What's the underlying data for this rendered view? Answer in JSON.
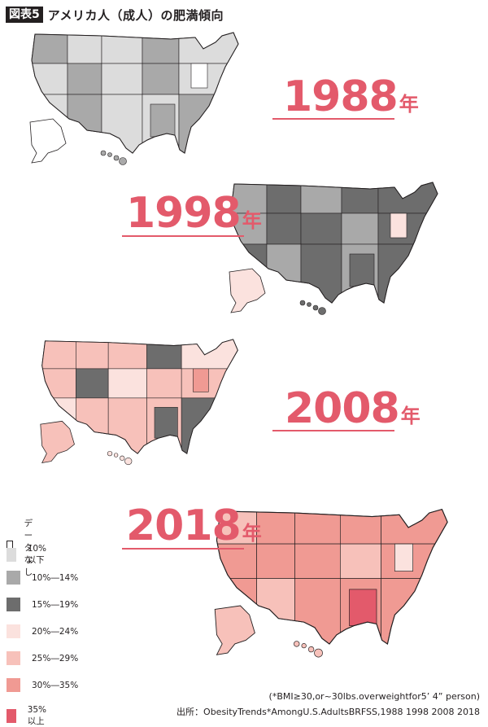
{
  "header": {
    "badge": "図表5",
    "title": "アメリカ人（成人）の肥満傾向"
  },
  "colors": {
    "no_data": "#ffffff",
    "under10": "#dcdcdc",
    "r10_14": "#a9a9a9",
    "r15_19": "#6d6d6d",
    "r20_24": "#fbe2de",
    "r25_29": "#f7c1ba",
    "r30_35": "#f09a93",
    "over35": "#e35a6b",
    "accent": "#e35a6b",
    "border": "#231f20"
  },
  "maps": [
    {
      "year": "1988",
      "nen": "年",
      "main": "r10_14",
      "alt": "under10",
      "dark": "r10_14",
      "pale": "no_data",
      "alaska": "no_data",
      "hawaii": "r10_14"
    },
    {
      "year": "1998",
      "nen": "年",
      "main": "r15_19",
      "alt": "r10_14",
      "dark": "r15_19",
      "pale": "r20_24",
      "alaska": "r20_24",
      "hawaii": "r15_19"
    },
    {
      "year": "2008",
      "nen": "年",
      "main": "r25_29",
      "alt": "r20_24",
      "dark": "r15_19",
      "pale": "r30_35",
      "alaska": "r25_29",
      "hawaii": "r20_24"
    },
    {
      "year": "2018",
      "nen": "年",
      "main": "r30_35",
      "alt": "r25_29",
      "dark": "over35",
      "pale": "r20_24",
      "alaska": "r25_29",
      "hawaii": "r25_29"
    }
  ],
  "legend": [
    {
      "label": "データなし",
      "color": "no_data"
    },
    {
      "label": "10%以下",
      "color": "under10"
    },
    {
      "label": "10%―14%",
      "color": "r10_14"
    },
    {
      "label": "15%―19%",
      "color": "r15_19"
    },
    {
      "label": "20%―24%",
      "color": "r20_24"
    },
    {
      "label": "25%―29%",
      "color": "r25_29"
    },
    {
      "label": "30%―35%",
      "color": "r30_35"
    },
    {
      "label": "35%以上",
      "color": "over35"
    }
  ],
  "note": "(*BMI≥30,or~30lbs.overweightfor5’ 4” person)",
  "source": "出所：ObesityTrends*AmongU.S.AdultsBRFSS,1988 1998 2008 2018"
}
